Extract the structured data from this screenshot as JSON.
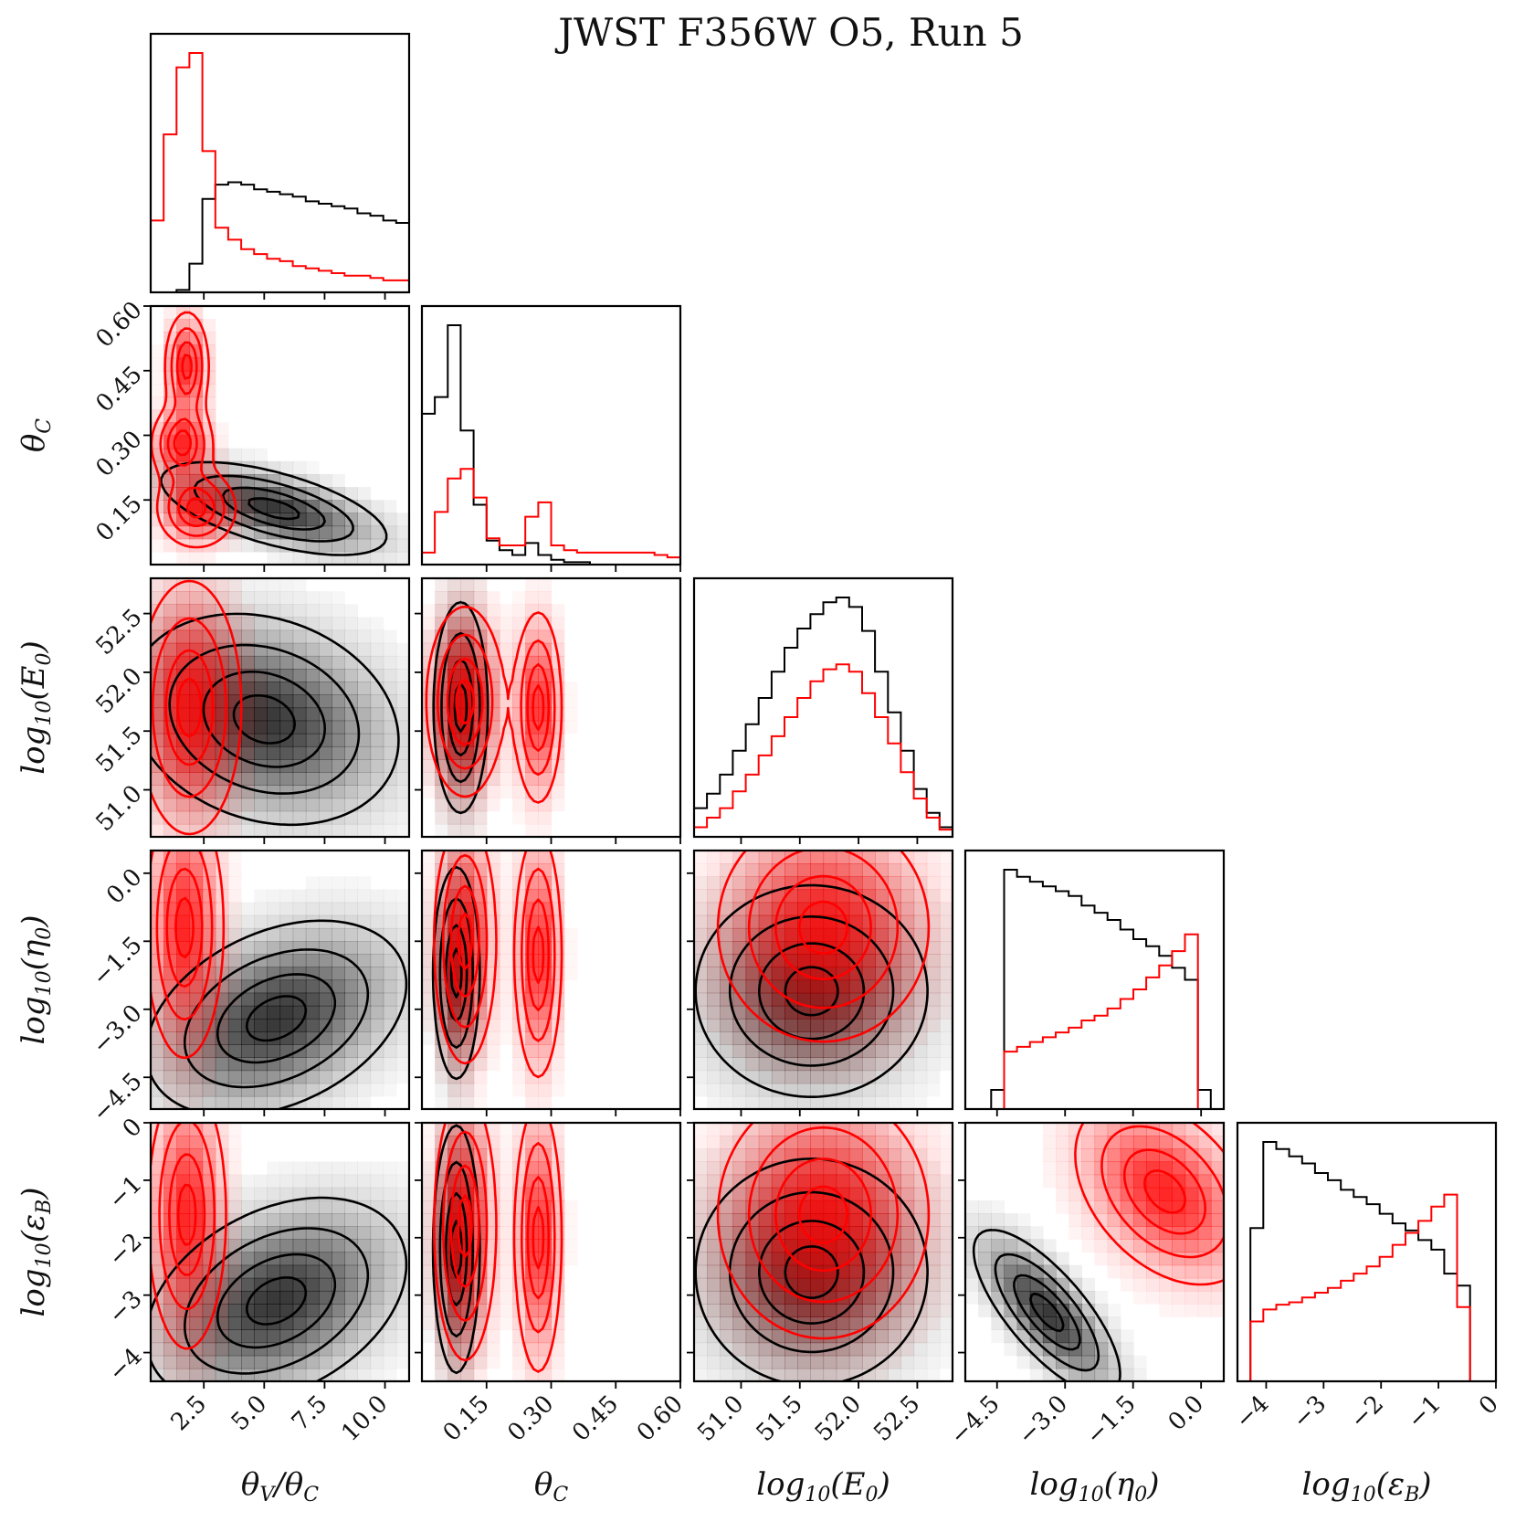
{
  "chart_data": {
    "type": "corner",
    "title": "JWST F356W O5, Run 5",
    "colors": {
      "black_series": "#000000",
      "red_series": "#ff0000",
      "grid": "none"
    },
    "parameters": [
      {
        "id": "tvtc",
        "label": "θV/θC",
        "range": [
          0.3,
          11.0
        ],
        "ticks": [
          2.5,
          5.0,
          7.5,
          10.0
        ],
        "tick_labels": [
          "2.5",
          "5.0",
          "7.5",
          "10.0"
        ]
      },
      {
        "id": "thc",
        "label": "θC",
        "range": [
          0.0,
          0.6
        ],
        "ticks": [
          0.15,
          0.3,
          0.45,
          0.6
        ],
        "tick_labels": [
          "0.15",
          "0.30",
          "0.45",
          "0.60"
        ]
      },
      {
        "id": "e0",
        "label": "log10(E0)",
        "range": [
          50.6,
          52.8
        ],
        "ticks": [
          51.0,
          51.5,
          52.0,
          52.5
        ],
        "tick_labels": [
          "51.0",
          "51.5",
          "52.0",
          "52.5"
        ]
      },
      {
        "id": "eta",
        "label": "log10(η0)",
        "range": [
          -5.2,
          0.5
        ],
        "ticks": [
          -4.5,
          -3.0,
          -1.5,
          0.0
        ],
        "tick_labels": [
          "−4.5",
          "−3.0",
          "−1.5",
          "0.0"
        ]
      },
      {
        "id": "eps",
        "label": "log10(εB)",
        "range": [
          -4.5,
          0.0
        ],
        "ticks": [
          -4,
          -3,
          -2,
          -1,
          0
        ],
        "tick_labels": [
          "−4",
          "−3",
          "−2",
          "−1",
          "0"
        ]
      }
    ],
    "y_tick_labels_row": {
      "thc": [
        "0.60",
        "0.45",
        "0.30",
        "0.15"
      ],
      "e0": [
        "52.5",
        "52.0",
        "51.5",
        "51.0"
      ],
      "eta": [
        "0.0",
        "−1.5",
        "−3.0",
        "−4.5"
      ],
      "eps": [
        "0",
        "−1",
        "−2",
        "−3",
        "−4"
      ]
    },
    "marginals": {
      "tvtc": {
        "edges": [
          0.3,
          0.835,
          1.37,
          1.905,
          2.44,
          2.975,
          3.51,
          4.045,
          4.58,
          5.115,
          5.65,
          6.185,
          6.72,
          7.255,
          7.79,
          8.325,
          8.86,
          9.395,
          9.93,
          10.465,
          11.0
        ],
        "black": [
          0,
          0,
          0.01,
          0.12,
          0.39,
          0.45,
          0.46,
          0.45,
          0.43,
          0.42,
          0.41,
          0.4,
          0.38,
          0.37,
          0.36,
          0.35,
          0.33,
          0.32,
          0.3,
          0.29
        ],
        "red": [
          0.3,
          0.66,
          0.94,
          1.0,
          0.59,
          0.27,
          0.22,
          0.18,
          0.16,
          0.14,
          0.13,
          0.11,
          0.1,
          0.09,
          0.08,
          0.07,
          0.07,
          0.06,
          0.05,
          0.05
        ]
      },
      "thc": {
        "edges": [
          0.0,
          0.03,
          0.06,
          0.09,
          0.12,
          0.15,
          0.18,
          0.21,
          0.24,
          0.27,
          0.3,
          0.33,
          0.36,
          0.39,
          0.42,
          0.45,
          0.48,
          0.51,
          0.54,
          0.57,
          0.6
        ],
        "black": [
          0.63,
          0.7,
          1.0,
          0.56,
          0.25,
          0.1,
          0.06,
          0.04,
          0.09,
          0.04,
          0.02,
          0.01,
          0.01,
          0,
          0,
          0,
          0,
          0,
          0,
          0
        ],
        "red": [
          0.05,
          0.22,
          0.36,
          0.4,
          0.28,
          0.11,
          0.08,
          0.08,
          0.2,
          0.26,
          0.08,
          0.06,
          0.05,
          0.05,
          0.05,
          0.05,
          0.05,
          0.05,
          0.04,
          0.03
        ]
      },
      "e0": {
        "edges": [
          50.6,
          50.71,
          50.82,
          50.93,
          51.04,
          51.15,
          51.26,
          51.37,
          51.48,
          51.59,
          51.7,
          51.81,
          51.92,
          52.03,
          52.14,
          52.25,
          52.36,
          52.47,
          52.58,
          52.69,
          52.8
        ],
        "black": [
          0.12,
          0.18,
          0.26,
          0.36,
          0.47,
          0.58,
          0.69,
          0.79,
          0.87,
          0.93,
          0.98,
          1.0,
          0.96,
          0.86,
          0.69,
          0.52,
          0.36,
          0.2,
          0.1,
          0.04
        ],
        "red": [
          0.04,
          0.08,
          0.12,
          0.19,
          0.26,
          0.34,
          0.42,
          0.5,
          0.58,
          0.65,
          0.7,
          0.72,
          0.69,
          0.6,
          0.5,
          0.39,
          0.27,
          0.16,
          0.08,
          0.03
        ]
      },
      "eta": {
        "edges": [
          -5.2,
          -4.915,
          -4.63,
          -4.345,
          -4.06,
          -3.775,
          -3.49,
          -3.205,
          -2.92,
          -2.635,
          -2.35,
          -2.065,
          -1.78,
          -1.495,
          -1.21,
          -0.925,
          -0.64,
          -0.355,
          -0.07,
          0.215,
          0.5
        ],
        "black": [
          0,
          0,
          0.08,
          1.0,
          0.97,
          0.95,
          0.93,
          0.91,
          0.89,
          0.85,
          0.82,
          0.79,
          0.75,
          0.71,
          0.68,
          0.64,
          0.59,
          0.54,
          0.08,
          0
        ],
        "red": [
          0,
          0,
          0,
          0.24,
          0.26,
          0.28,
          0.3,
          0.32,
          0.34,
          0.37,
          0.39,
          0.42,
          0.46,
          0.5,
          0.55,
          0.6,
          0.66,
          0.73,
          0,
          0
        ]
      },
      "eps": {
        "edges": [
          -4.5,
          -4.275,
          -4.05,
          -3.825,
          -3.6,
          -3.375,
          -3.15,
          -2.925,
          -2.7,
          -2.475,
          -2.25,
          -2.025,
          -1.8,
          -1.575,
          -1.35,
          -1.125,
          -0.9,
          -0.675,
          -0.45,
          -0.225,
          0.0
        ],
        "black": [
          0,
          0.64,
          1.0,
          0.97,
          0.94,
          0.91,
          0.87,
          0.84,
          0.8,
          0.77,
          0.74,
          0.7,
          0.66,
          0.63,
          0.59,
          0.55,
          0.45,
          0.4,
          0,
          0
        ],
        "red": [
          0,
          0.25,
          0.3,
          0.32,
          0.33,
          0.35,
          0.37,
          0.39,
          0.42,
          0.45,
          0.48,
          0.52,
          0.57,
          0.62,
          0.67,
          0.73,
          0.78,
          0.31,
          0,
          0
        ]
      }
    },
    "pairs": [
      {
        "x": "tvtc",
        "y": "thc",
        "black": {
          "center": [
            5.4,
            0.13
          ],
          "sigma": [
            2.6,
            0.06
          ],
          "rho": -0.6,
          "peak": [
            5.3,
            0.13
          ]
        },
        "red": [
          {
            "center": [
              2.2,
              0.13
            ],
            "sigma": [
              0.9,
              0.05
            ],
            "rho": 0.0
          },
          {
            "center": [
              1.6,
              0.28
            ],
            "sigma": [
              0.7,
              0.05
            ],
            "rho": 0.0
          },
          {
            "center": [
              1.8,
              0.46
            ],
            "sigma": [
              0.5,
              0.07
            ],
            "rho": 0.0
          }
        ]
      },
      {
        "x": "tvtc",
        "y": "e0",
        "black": {
          "center": [
            5.0,
            51.6
          ],
          "sigma": [
            3.1,
            0.5
          ],
          "rho": -0.2
        },
        "red": [
          {
            "center": [
              1.9,
              51.7
            ],
            "sigma": [
              1.2,
              0.6
            ],
            "rho": 0.0
          }
        ]
      },
      {
        "x": "tvtc",
        "y": "eta",
        "black": {
          "center": [
            5.5,
            -3.2
          ],
          "sigma": [
            3.0,
            1.2
          ],
          "rho": 0.35
        },
        "red": [
          {
            "center": [
              1.7,
              -1.2
            ],
            "sigma": [
              0.9,
              1.6
            ],
            "rho": 0.0
          }
        ]
      },
      {
        "x": "tvtc",
        "y": "eps",
        "black": {
          "center": [
            5.5,
            -3.1
          ],
          "sigma": [
            3.0,
            1.0
          ],
          "rho": 0.35
        },
        "red": [
          {
            "center": [
              1.8,
              -1.6
            ],
            "sigma": [
              0.9,
              1.3
            ],
            "rho": 0.0
          }
        ]
      },
      {
        "x": "thc",
        "y": "e0",
        "black": {
          "center": [
            0.09,
            51.7
          ],
          "sigma": [
            0.035,
            0.5
          ],
          "rho": 0.0
        },
        "red": [
          {
            "center": [
              0.1,
              51.75
            ],
            "sigma": [
              0.05,
              0.45
            ],
            "rho": 0.0
          },
          {
            "center": [
              0.27,
              51.7
            ],
            "sigma": [
              0.03,
              0.45
            ],
            "rho": 0.0
          }
        ]
      },
      {
        "x": "thc",
        "y": "eta",
        "black": {
          "center": [
            0.08,
            -2.2
          ],
          "sigma": [
            0.03,
            1.3
          ],
          "rho": 0.0
        },
        "red": [
          {
            "center": [
              0.1,
              -1.5
            ],
            "sigma": [
              0.04,
              1.5
            ],
            "rho": 0.0
          },
          {
            "center": [
              0.27,
              -1.8
            ],
            "sigma": [
              0.03,
              1.5
            ],
            "rho": 0.0
          }
        ]
      },
      {
        "x": "thc",
        "y": "eps",
        "black": {
          "center": [
            0.08,
            -2.2
          ],
          "sigma": [
            0.03,
            1.2
          ],
          "rho": 0.0
        },
        "red": [
          {
            "center": [
              0.1,
              -1.8
            ],
            "sigma": [
              0.04,
              1.3
            ],
            "rho": 0.0
          },
          {
            "center": [
              0.27,
              -2.0
            ],
            "sigma": [
              0.03,
              1.3
            ],
            "rho": 0.0
          }
        ]
      },
      {
        "x": "e0",
        "y": "eta",
        "black": {
          "center": [
            51.6,
            -2.6
          ],
          "sigma": [
            0.55,
            1.3
          ],
          "rho": 0.0
        },
        "red": [
          {
            "center": [
              51.7,
              -1.2
            ],
            "sigma": [
              0.5,
              1.4
            ],
            "rho": 0.0
          }
        ]
      },
      {
        "x": "e0",
        "y": "eps",
        "black": {
          "center": [
            51.6,
            -2.6
          ],
          "sigma": [
            0.55,
            1.1
          ],
          "rho": 0.0
        },
        "red": [
          {
            "center": [
              51.7,
              -1.6
            ],
            "sigma": [
              0.5,
              1.2
            ],
            "rho": 0.0
          }
        ]
      },
      {
        "x": "eta",
        "y": "eps",
        "black": {
          "center": [
            -3.4,
            -3.3
          ],
          "sigma": [
            0.9,
            0.8
          ],
          "rho": -0.75
        },
        "red": [
          {
            "center": [
              -0.8,
              -1.2
            ],
            "sigma": [
              1.1,
              0.9
            ],
            "rho": -0.4
          }
        ]
      }
    ],
    "contour_levels": [
      0.2,
      0.45,
      0.72,
      0.92
    ]
  }
}
